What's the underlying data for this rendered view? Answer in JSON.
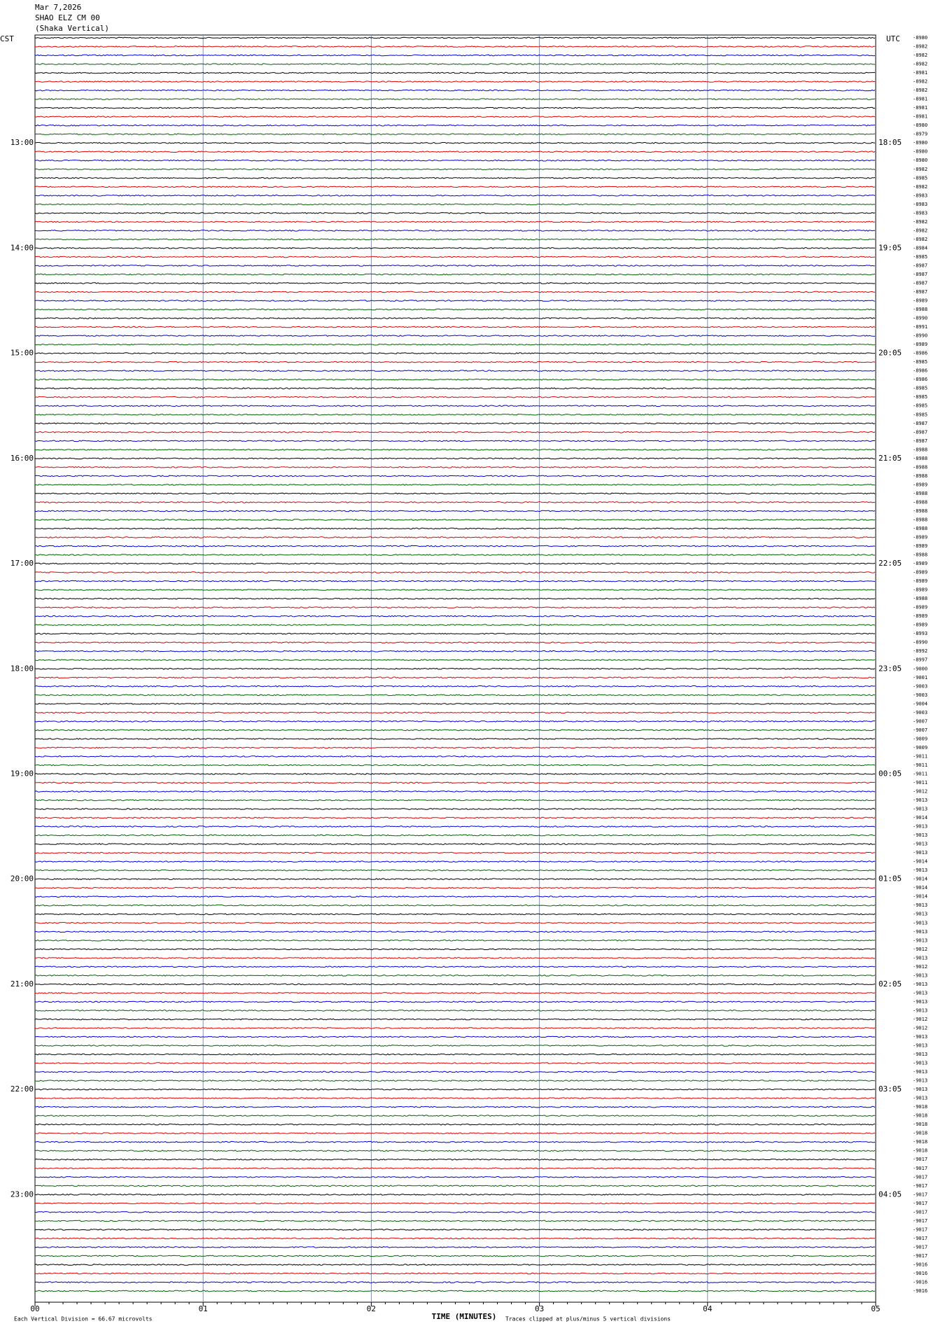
{
  "header": {
    "date": "Mar 7,2026",
    "station": "SHAO ELZ CM 00",
    "name": "(Shaka Vertical)"
  },
  "left_axis": {
    "label": "CST",
    "hours": [
      "13:00",
      "14:00",
      "15:00",
      "16:00",
      "17:00",
      "18:00",
      "19:00",
      "20:00",
      "21:00",
      "22:00",
      "23:00"
    ]
  },
  "right_axis": {
    "label": "UTC",
    "hours": [
      "18:05",
      "19:05",
      "20:05",
      "21:05",
      "22:05",
      "23:05",
      "00:05",
      "01:05",
      "02:05",
      "03:05",
      "04:05"
    ]
  },
  "trace_offsets": [
    -8980,
    -8982,
    -8982,
    -8982,
    -8981,
    -8982,
    -8982,
    -8981,
    -8981,
    -8981,
    -8980,
    -8979,
    -8980,
    -8980,
    -8980,
    -8982,
    -8985,
    -8982,
    -8983,
    -8983,
    -8983,
    -8982,
    -8982,
    -8982,
    -8984,
    -8985,
    -8987,
    -8987,
    -8987,
    -8987,
    -8989,
    -8988,
    -8990,
    -8991,
    -8990,
    -8989,
    -8986,
    -8985,
    -8986,
    -8986,
    -8985,
    -8985,
    -8985,
    -8985,
    -8987,
    -8987,
    -8987,
    -8988,
    -8988,
    -8988,
    -8988,
    -8989,
    -8988,
    -8988,
    -8988,
    -8988,
    -8988,
    -8989,
    -8989,
    -8988,
    -8989,
    -8989,
    -8989,
    -8989,
    -8988,
    -8989,
    -8989,
    -8989,
    -8993,
    -8990,
    -8992,
    -8997,
    -9000,
    -9001,
    -9003,
    -9003,
    -9004,
    -9003,
    -9007,
    -9007,
    -9009,
    -9009,
    -9011,
    -9011,
    -9011,
    -9011,
    -9012,
    -9013,
    -9013,
    -9014,
    -9013,
    -9013,
    -9013,
    -9013,
    -9014,
    -9013,
    -9014,
    -9014,
    -9014,
    -9013,
    -9013,
    -9013,
    -9013,
    -9013,
    -9012,
    -9013,
    -9012,
    -9013,
    -9013,
    -9013,
    -9013,
    -9013,
    -9012,
    -9012,
    -9013,
    -9013,
    -9013,
    -9013,
    -9013,
    -9013,
    -9013,
    -9013,
    -9018,
    -9018,
    -9018,
    -9018,
    -9018,
    -9018,
    -9017,
    -9017,
    -9017,
    -9017,
    -9017,
    -9017,
    -9017,
    -9017,
    -9017,
    -9017,
    -9017,
    -9017,
    -9016,
    -9016,
    -9016,
    -9016
  ],
  "trace_colors": [
    "#000000",
    "#e00000",
    "#0000e0",
    "#006400"
  ],
  "x_axis": {
    "label": "TIME (MINUTES)",
    "ticks": [
      "00",
      "01",
      "02",
      "03",
      "04",
      "05"
    ]
  },
  "footer": {
    "scale": "Each Vertical Division = 66.67 microvolts",
    "clip": "Traces clipped at plus/minus 5 vertical divisions"
  }
}
